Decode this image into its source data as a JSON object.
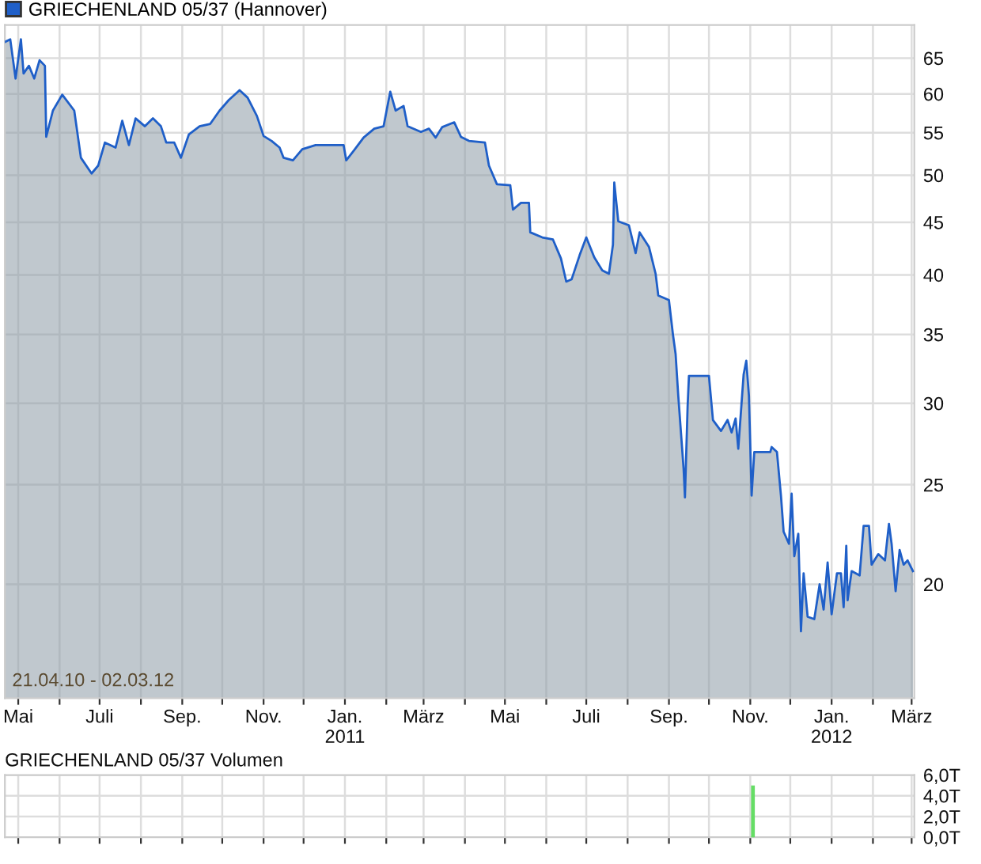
{
  "chart_data": [
    {
      "type": "area",
      "log": "y",
      "legend": "top left",
      "grid": true,
      "series": [
        {
          "name": "GRIECHENLAND 05/37 (Hannover)",
          "color": "#1f5fc8",
          "x": [
            "2010-04-21",
            "2010-04-25",
            "2010-04-29",
            "2010-05-03",
            "2010-05-05",
            "2010-05-09",
            "2010-05-13",
            "2010-05-17",
            "2010-05-21",
            "2010-05-22",
            "2010-05-27",
            "2010-06-03",
            "2010-06-12",
            "2010-06-17",
            "2010-06-25",
            "2010-06-30",
            "2010-07-05",
            "2010-07-13",
            "2010-07-18",
            "2010-07-23",
            "2010-07-28",
            "2010-08-04",
            "2010-08-10",
            "2010-08-16",
            "2010-08-20",
            "2010-08-26",
            "2010-08-31",
            "2010-09-06",
            "2010-09-14",
            "2010-09-22",
            "2010-09-29",
            "2010-10-06",
            "2010-10-14",
            "2010-10-20",
            "2010-10-27",
            "2010-11-01",
            "2010-11-07",
            "2010-11-13",
            "2010-11-16",
            "2010-11-23",
            "2010-11-30",
            "2010-12-10",
            "2010-12-31",
            "2011-01-02",
            "2011-01-08",
            "2011-01-15",
            "2011-01-23",
            "2011-01-30",
            "2011-02-04",
            "2011-02-08",
            "2011-02-14",
            "2011-02-17",
            "2011-02-27",
            "2011-03-05",
            "2011-03-10",
            "2011-03-15",
            "2011-03-24",
            "2011-03-29",
            "2011-04-04",
            "2011-04-16",
            "2011-04-19",
            "2011-04-25",
            "2011-05-05",
            "2011-05-07",
            "2011-05-13",
            "2011-05-19",
            "2011-05-20",
            "2011-05-29",
            "2011-06-06",
            "2011-06-12",
            "2011-06-16",
            "2011-06-20",
            "2011-06-26",
            "2011-07-01",
            "2011-07-07",
            "2011-07-13",
            "2011-07-18",
            "2011-07-21",
            "2011-07-22",
            "2011-07-25",
            "2011-08-02",
            "2011-08-07",
            "2011-08-10",
            "2011-08-17",
            "2011-08-22",
            "2011-08-24",
            "2011-09-01",
            "2011-09-04",
            "2011-09-06",
            "2011-09-08",
            "2011-09-12",
            "2011-09-13",
            "2011-09-15",
            "2011-09-16",
            "2011-10-01",
            "2011-10-04",
            "2011-10-10",
            "2011-10-15",
            "2011-10-18",
            "2011-10-21",
            "2011-10-23",
            "2011-10-27",
            "2011-10-29",
            "2011-10-31",
            "2011-11-02",
            "2011-11-04",
            "2011-11-16",
            "2011-11-17",
            "2011-11-21",
            "2011-11-24",
            "2011-11-26",
            "2011-11-30",
            "2011-12-02",
            "2011-12-04",
            "2011-12-07",
            "2011-12-09",
            "2011-12-11",
            "2011-12-14",
            "2011-12-19",
            "2011-12-23",
            "2011-12-26",
            "2011-12-29",
            "2012-01-01",
            "2012-01-05",
            "2012-01-08",
            "2012-01-10",
            "2012-01-12",
            "2012-01-13",
            "2012-01-16",
            "2012-01-22",
            "2012-01-25",
            "2012-01-29",
            "2012-01-31",
            "2012-02-05",
            "2012-02-10",
            "2012-02-13",
            "2012-02-15",
            "2012-02-18",
            "2012-02-21",
            "2012-02-24",
            "2012-02-27",
            "2012-03-02"
          ],
          "values": [
            67.4,
            67.8,
            62.1,
            67.8,
            62.8,
            63.9,
            62.1,
            64.7,
            63.9,
            54.5,
            57.8,
            59.9,
            57.8,
            52.0,
            50.2,
            51.1,
            53.8,
            53.2,
            56.5,
            53.5,
            56.8,
            55.8,
            56.8,
            55.8,
            53.8,
            53.8,
            52.0,
            54.8,
            55.8,
            56.1,
            57.8,
            59.2,
            60.5,
            59.5,
            57.1,
            54.6,
            54.0,
            53.2,
            52.0,
            51.7,
            53.0,
            53.5,
            53.5,
            51.7,
            52.9,
            54.4,
            55.5,
            55.8,
            60.3,
            57.8,
            58.4,
            55.8,
            55.1,
            55.5,
            54.4,
            55.7,
            56.3,
            54.5,
            54.0,
            53.8,
            51.1,
            49.0,
            48.9,
            46.3,
            47.0,
            47.0,
            44.0,
            43.5,
            43.3,
            41.5,
            39.4,
            39.6,
            41.8,
            43.5,
            41.6,
            40.4,
            40.1,
            42.8,
            49.2,
            45.1,
            44.7,
            42.0,
            44.0,
            42.6,
            40.1,
            38.2,
            37.8,
            35.0,
            33.5,
            30.5,
            25.9,
            24.3,
            29.8,
            31.9,
            31.9,
            28.9,
            28.2,
            28.9,
            28.1,
            29.0,
            27.1,
            32.0,
            33.0,
            30.5,
            24.4,
            26.9,
            26.9,
            27.2,
            26.9,
            24.4,
            22.5,
            21.9,
            24.5,
            21.3,
            22.4,
            18.0,
            20.5,
            18.6,
            18.5,
            20.0,
            18.9,
            21.0,
            18.7,
            20.5,
            20.5,
            19.0,
            21.8,
            19.3,
            20.6,
            20.4,
            22.8,
            22.8,
            20.9,
            21.4,
            21.1,
            22.9,
            21.9,
            19.7,
            21.6,
            20.9,
            21.1,
            20.6
          ]
        }
      ],
      "xlim": [
        "2010-04-21",
        "2012-03-03"
      ],
      "ylim": [
        15.5,
        70
      ],
      "yticks": [
        20,
        25,
        30,
        35,
        40,
        45,
        50,
        55,
        60,
        65
      ],
      "xticks": [
        {
          "value": "2010-05-01",
          "label": "Mai"
        },
        {
          "value": "2010-06-01",
          "label": null
        },
        {
          "value": "2010-07-01",
          "label": "Juli"
        },
        {
          "value": "2010-08-01",
          "label": null
        },
        {
          "value": "2010-09-01",
          "label": "Sep."
        },
        {
          "value": "2010-10-01",
          "label": null
        },
        {
          "value": "2010-11-01",
          "label": "Nov."
        },
        {
          "value": "2010-12-01",
          "label": null
        },
        {
          "value": "2011-01-01",
          "label": "Jan.\n2011"
        },
        {
          "value": "2011-02-01",
          "label": null
        },
        {
          "value": "2011-03-01",
          "label": "März"
        },
        {
          "value": "2011-04-01",
          "label": null
        },
        {
          "value": "2011-05-01",
          "label": "Mai"
        },
        {
          "value": "2011-06-01",
          "label": null
        },
        {
          "value": "2011-07-01",
          "label": "Juli"
        },
        {
          "value": "2011-08-01",
          "label": null
        },
        {
          "value": "2011-09-01",
          "label": "Sep."
        },
        {
          "value": "2011-10-01",
          "label": null
        },
        {
          "value": "2011-11-01",
          "label": "Nov."
        },
        {
          "value": "2011-12-01",
          "label": null
        },
        {
          "value": "2012-01-01",
          "label": "Jan.\n2012"
        },
        {
          "value": "2012-02-01",
          "label": null
        },
        {
          "value": "2012-03-01",
          "label": "März"
        }
      ],
      "annotations": [
        "21.04.10 - 02.03.12"
      ]
    },
    {
      "type": "bar",
      "title": "GRIECHENLAND 05/37 Volumen",
      "grid": true,
      "tick_labels": "y",
      "x": [
        "2011-11-03"
      ],
      "values": [
        4.9
      ],
      "color": "#66dd66",
      "xlim": [
        "2010-04-21",
        "2012-03-03"
      ],
      "ylim": [
        0,
        6
      ],
      "yticks": [
        {
          "value": 0,
          "label": "0,0T"
        },
        {
          "value": 2,
          "label": "2,0T"
        },
        {
          "value": 4,
          "label": "4,0T"
        },
        {
          "value": 6,
          "label": "6,0T"
        }
      ],
      "xticks": [
        {
          "value": "2010-05-01",
          "label": null
        },
        {
          "value": "2010-06-01",
          "label": null
        },
        {
          "value": "2010-07-01",
          "label": null
        },
        {
          "value": "2010-08-01",
          "label": null
        },
        {
          "value": "2010-09-01",
          "label": null
        },
        {
          "value": "2010-10-01",
          "label": null
        },
        {
          "value": "2010-11-01",
          "label": null
        },
        {
          "value": "2010-12-01",
          "label": null
        },
        {
          "value": "2011-01-01",
          "label": null
        },
        {
          "value": "2011-02-01",
          "label": null
        },
        {
          "value": "2011-03-01",
          "label": null
        },
        {
          "value": "2011-04-01",
          "label": null
        },
        {
          "value": "2011-05-01",
          "label": null
        },
        {
          "value": "2011-06-01",
          "label": null
        },
        {
          "value": "2011-07-01",
          "label": null
        },
        {
          "value": "2011-08-01",
          "label": null
        },
        {
          "value": "2011-09-01",
          "label": null
        },
        {
          "value": "2011-10-01",
          "label": null
        },
        {
          "value": "2011-11-01",
          "label": null
        },
        {
          "value": "2011-12-01",
          "label": null
        },
        {
          "value": "2012-01-01",
          "label": null
        },
        {
          "value": "2012-02-01",
          "label": null
        },
        {
          "value": "2012-03-01",
          "label": null
        }
      ]
    }
  ]
}
